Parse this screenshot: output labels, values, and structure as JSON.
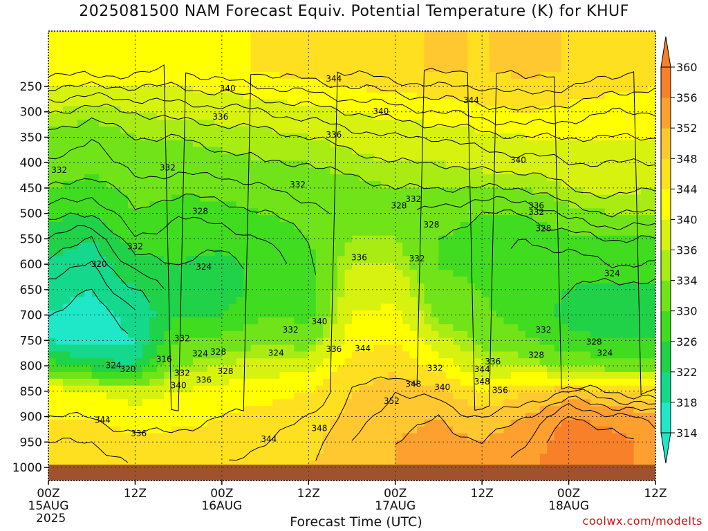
{
  "chart_data": {
    "type": "heatmap",
    "title": "2025081500 NAM Forecast Equiv. Potential Temperature (K) for KHUF",
    "xlabel": "Forecast Time (UTC)",
    "ylabel": "",
    "credit": "coolwx.com/modelts",
    "x_hours": [
      0,
      12,
      24,
      36,
      48,
      60,
      72,
      84
    ],
    "x_ticks": [
      {
        "hour": 0,
        "line1": "00Z",
        "line2": "15AUG",
        "line3": "2025"
      },
      {
        "hour": 12,
        "line1": "12Z",
        "line2": "",
        "line3": ""
      },
      {
        "hour": 24,
        "line1": "00Z",
        "line2": "16AUG",
        "line3": ""
      },
      {
        "hour": 36,
        "line1": "12Z",
        "line2": "",
        "line3": ""
      },
      {
        "hour": 48,
        "line1": "00Z",
        "line2": "17AUG",
        "line3": ""
      },
      {
        "hour": 60,
        "line1": "12Z",
        "line2": "",
        "line3": ""
      },
      {
        "hour": 72,
        "line1": "00Z",
        "line2": "18AUG",
        "line3": ""
      },
      {
        "hour": 84,
        "line1": "12Z",
        "line2": "",
        "line3": ""
      }
    ],
    "y_pressure_ticks": [
      250,
      300,
      350,
      400,
      450,
      500,
      550,
      600,
      650,
      700,
      750,
      800,
      850,
      900,
      950,
      1000
    ],
    "y_reversed": true,
    "grid": true,
    "colorbar_levels": [
      314,
      318,
      322,
      326,
      330,
      334,
      336,
      340,
      344,
      348,
      352,
      356,
      360
    ],
    "colorbar_colors": [
      "#1fe8c8",
      "#14d88c",
      "#20d248",
      "#40dc20",
      "#70e418",
      "#a8ec14",
      "#d8f210",
      "#ffff00",
      "#ffe020",
      "#ffc830",
      "#fda030",
      "#f88028"
    ],
    "ground_color": "#a0522d",
    "pressure_rows": [
      250,
      300,
      350,
      400,
      450,
      500,
      550,
      600,
      650,
      700,
      750,
      800,
      850,
      900,
      950,
      1000
    ],
    "theta_e_by_hour": [
      {
        "hour": 0,
        "values": [
          340,
          336,
          333,
          332,
          330,
          327,
          324,
          321,
          319,
          318,
          318,
          328,
          342,
          344,
          346,
          347
        ]
      },
      {
        "hour": 6,
        "values": [
          340,
          335,
          332,
          331,
          329,
          326,
          322,
          320,
          318,
          317,
          316,
          324,
          340,
          344,
          346,
          347
        ]
      },
      {
        "hour": 12,
        "values": [
          340,
          336,
          334,
          333,
          331,
          330,
          328,
          325,
          322,
          319,
          318,
          322,
          338,
          342,
          345,
          346
        ]
      },
      {
        "hour": 18,
        "values": [
          340,
          337,
          334,
          333,
          331,
          328,
          327,
          326,
          325,
          326,
          330,
          334,
          340,
          343,
          345,
          346
        ]
      },
      {
        "hour": 24,
        "values": [
          341,
          337,
          335,
          333,
          331,
          329,
          327,
          325,
          324,
          326,
          331,
          336,
          342,
          344,
          345,
          346
        ]
      },
      {
        "hour": 30,
        "values": [
          342,
          338,
          335,
          334,
          332,
          330,
          328,
          327,
          328,
          330,
          333,
          338,
          343,
          345,
          346,
          347
        ]
      },
      {
        "hour": 36,
        "values": [
          343,
          339,
          336,
          334,
          333,
          331,
          330,
          329,
          328,
          329,
          332,
          338,
          344,
          346,
          347,
          348
        ]
      },
      {
        "hour": 42,
        "values": [
          344,
          340,
          337,
          335,
          333,
          333,
          334,
          336,
          338,
          340,
          342,
          346,
          348,
          349,
          350,
          350
        ]
      },
      {
        "hour": 48,
        "values": [
          345,
          341,
          338,
          336,
          334,
          333,
          334,
          336,
          339,
          341,
          344,
          347,
          350,
          351,
          352,
          352
        ]
      },
      {
        "hour": 54,
        "values": [
          346,
          342,
          338,
          336,
          334,
          331,
          330,
          330,
          331,
          333,
          337,
          343,
          349,
          352,
          353,
          353
        ]
      },
      {
        "hour": 60,
        "values": [
          346,
          343,
          339,
          337,
          334,
          330,
          329,
          329,
          330,
          331,
          333,
          336,
          344,
          350,
          352,
          353
        ]
      },
      {
        "hour": 66,
        "values": [
          347,
          344,
          340,
          337,
          334,
          330,
          328,
          327,
          327,
          328,
          331,
          336,
          348,
          352,
          354,
          355
        ]
      },
      {
        "hour": 72,
        "values": [
          346,
          343,
          340,
          338,
          336,
          333,
          329,
          327,
          326,
          325,
          327,
          333,
          350,
          356,
          358,
          358
        ]
      },
      {
        "hour": 78,
        "values": [
          345,
          342,
          340,
          338,
          337,
          334,
          330,
          328,
          325,
          324,
          326,
          332,
          348,
          355,
          357,
          357
        ]
      },
      {
        "hour": 84,
        "values": [
          344,
          342,
          340,
          338,
          336,
          334,
          330,
          328,
          325,
          324,
          326,
          331,
          346,
          353,
          355,
          355
        ]
      }
    ],
    "contour_labels": [
      {
        "text": "344",
        "hour": 39.5,
        "p": 235
      },
      {
        "text": "340",
        "hour": 24.8,
        "p": 254
      },
      {
        "text": "344",
        "hour": 58.5,
        "p": 277
      },
      {
        "text": "336",
        "hour": 23.8,
        "p": 310
      },
      {
        "text": "340",
        "hour": 46,
        "p": 299
      },
      {
        "text": "336",
        "hour": 39.5,
        "p": 345
      },
      {
        "text": "332",
        "hour": 1.5,
        "p": 415
      },
      {
        "text": "332",
        "hour": 16.5,
        "p": 410
      },
      {
        "text": "340",
        "hour": 65,
        "p": 395
      },
      {
        "text": "332",
        "hour": 34.5,
        "p": 443
      },
      {
        "text": "332",
        "hour": 50.5,
        "p": 472
      },
      {
        "text": "328",
        "hour": 48.5,
        "p": 485
      },
      {
        "text": "336",
        "hour": 67.5,
        "p": 485
      },
      {
        "text": "328",
        "hour": 21,
        "p": 496
      },
      {
        "text": "332",
        "hour": 67.5,
        "p": 498
      },
      {
        "text": "328",
        "hour": 53,
        "p": 522
      },
      {
        "text": "328",
        "hour": 68.5,
        "p": 530
      },
      {
        "text": "332",
        "hour": 12,
        "p": 565
      },
      {
        "text": "336",
        "hour": 43,
        "p": 587
      },
      {
        "text": "332",
        "hour": 51,
        "p": 589
      },
      {
        "text": "320",
        "hour": 7,
        "p": 600
      },
      {
        "text": "324",
        "hour": 21.5,
        "p": 605
      },
      {
        "text": "324",
        "hour": 78,
        "p": 618
      },
      {
        "text": "340",
        "hour": 37.5,
        "p": 713
      },
      {
        "text": "332",
        "hour": 33.5,
        "p": 729
      },
      {
        "text": "332",
        "hour": 68.5,
        "p": 729
      },
      {
        "text": "332",
        "hour": 18.5,
        "p": 746
      },
      {
        "text": "328",
        "hour": 75.5,
        "p": 753
      },
      {
        "text": "336",
        "hour": 39.5,
        "p": 767
      },
      {
        "text": "344",
        "hour": 43.5,
        "p": 766
      },
      {
        "text": "324",
        "hour": 21,
        "p": 776
      },
      {
        "text": "328",
        "hour": 23.5,
        "p": 773
      },
      {
        "text": "324",
        "hour": 31.5,
        "p": 775
      },
      {
        "text": "324",
        "hour": 77,
        "p": 775
      },
      {
        "text": "328",
        "hour": 67.5,
        "p": 779
      },
      {
        "text": "316",
        "hour": 16,
        "p": 787
      },
      {
        "text": "336",
        "hour": 61.5,
        "p": 792
      },
      {
        "text": "324",
        "hour": 9,
        "p": 799
      },
      {
        "text": "332",
        "hour": 53.5,
        "p": 805
      },
      {
        "text": "320",
        "hour": 11,
        "p": 807
      },
      {
        "text": "344",
        "hour": 60,
        "p": 807
      },
      {
        "text": "332",
        "hour": 18.5,
        "p": 814
      },
      {
        "text": "328",
        "hour": 24.5,
        "p": 811
      },
      {
        "text": "336",
        "hour": 21.5,
        "p": 828
      },
      {
        "text": "348",
        "hour": 50.5,
        "p": 836
      },
      {
        "text": "348",
        "hour": 60,
        "p": 831
      },
      {
        "text": "340",
        "hour": 18,
        "p": 839
      },
      {
        "text": "340",
        "hour": 54.5,
        "p": 842
      },
      {
        "text": "356",
        "hour": 62.5,
        "p": 848
      },
      {
        "text": "352",
        "hour": 47.5,
        "p": 869
      },
      {
        "text": "344",
        "hour": 7.5,
        "p": 907
      },
      {
        "text": "348",
        "hour": 37.5,
        "p": 923
      },
      {
        "text": "336",
        "hour": 12.5,
        "p": 933
      },
      {
        "text": "344",
        "hour": 30.5,
        "p": 944
      }
    ]
  }
}
